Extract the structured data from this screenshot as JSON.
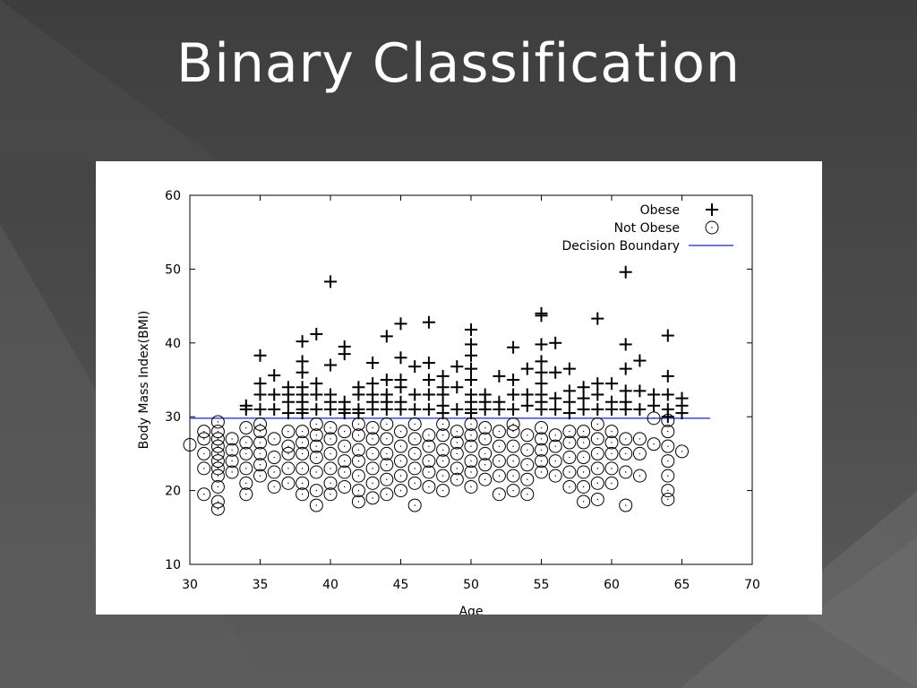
{
  "slide": {
    "title": "Binary Classification"
  },
  "chart_data": {
    "type": "scatter",
    "xlabel": "Age",
    "ylabel": "Body Mass Index(BMI)",
    "xlim": [
      30,
      70
    ],
    "ylim": [
      10,
      60
    ],
    "xticks": [
      "30",
      "35",
      "40",
      "45",
      "50",
      "55",
      "60",
      "65",
      "70"
    ],
    "yticks": [
      "10",
      "20",
      "30",
      "40",
      "50",
      "60"
    ],
    "legend_position": "top-right",
    "grid": false,
    "series": [
      {
        "name": "Obese",
        "marker": "plus",
        "color": "#000000",
        "points": [
          [
            34,
            31.5
          ],
          [
            34,
            31
          ],
          [
            35,
            38.3
          ],
          [
            35,
            34.5
          ],
          [
            35,
            33
          ],
          [
            35,
            31
          ],
          [
            36,
            35.6
          ],
          [
            36,
            33
          ],
          [
            36,
            31
          ],
          [
            37,
            34
          ],
          [
            37,
            33
          ],
          [
            37,
            32
          ],
          [
            37,
            30.5
          ],
          [
            38,
            40.2
          ],
          [
            38,
            37.5
          ],
          [
            38,
            36
          ],
          [
            38,
            34
          ],
          [
            38,
            33
          ],
          [
            38,
            32
          ],
          [
            38,
            31
          ],
          [
            38,
            30.5
          ],
          [
            39,
            41.2
          ],
          [
            39,
            34.5
          ],
          [
            39,
            33
          ],
          [
            39,
            31
          ],
          [
            40,
            48.3
          ],
          [
            40,
            37
          ],
          [
            40,
            33
          ],
          [
            40,
            32
          ],
          [
            40,
            31
          ],
          [
            41,
            39.5
          ],
          [
            41,
            38.5
          ],
          [
            41,
            32
          ],
          [
            41,
            31
          ],
          [
            41,
            30.5
          ],
          [
            42,
            34
          ],
          [
            42,
            33
          ],
          [
            42,
            31
          ],
          [
            42,
            30.5
          ],
          [
            43,
            37.3
          ],
          [
            43,
            34.5
          ],
          [
            43,
            33
          ],
          [
            43,
            32
          ],
          [
            43,
            31
          ],
          [
            44,
            40.9
          ],
          [
            44,
            35
          ],
          [
            44,
            33
          ],
          [
            44,
            32
          ],
          [
            44,
            31
          ],
          [
            45,
            42.6
          ],
          [
            45,
            38
          ],
          [
            45,
            35
          ],
          [
            45,
            34
          ],
          [
            45,
            32
          ],
          [
            45,
            31
          ],
          [
            46,
            36.8
          ],
          [
            46,
            33
          ],
          [
            46,
            31
          ],
          [
            47,
            42.8
          ],
          [
            47,
            37.3
          ],
          [
            47,
            35
          ],
          [
            47,
            33
          ],
          [
            47,
            31
          ],
          [
            48,
            35.5
          ],
          [
            48,
            34
          ],
          [
            48,
            33
          ],
          [
            48,
            31.5
          ],
          [
            48,
            30.5
          ],
          [
            49,
            36.8
          ],
          [
            49,
            34
          ],
          [
            49,
            31
          ],
          [
            50,
            41.8
          ],
          [
            50,
            39.8
          ],
          [
            50,
            38.3
          ],
          [
            50,
            36.5
          ],
          [
            50,
            35
          ],
          [
            50,
            33
          ],
          [
            50,
            32
          ],
          [
            50,
            31
          ],
          [
            50,
            30.5
          ],
          [
            51,
            33
          ],
          [
            51,
            32
          ],
          [
            51,
            31
          ],
          [
            52,
            35.5
          ],
          [
            52,
            32
          ],
          [
            52,
            31
          ],
          [
            53,
            39.4
          ],
          [
            53,
            35
          ],
          [
            53,
            33
          ],
          [
            53,
            31
          ],
          [
            54,
            36.5
          ],
          [
            54,
            33
          ],
          [
            54,
            31.5
          ],
          [
            55,
            44
          ],
          [
            55,
            43.7
          ],
          [
            55,
            39.8
          ],
          [
            55,
            37.5
          ],
          [
            55,
            36
          ],
          [
            55,
            34.5
          ],
          [
            55,
            33
          ],
          [
            55,
            32
          ],
          [
            55,
            31
          ],
          [
            56,
            40
          ],
          [
            56,
            36
          ],
          [
            56,
            32.5
          ],
          [
            56,
            31
          ],
          [
            57,
            36.5
          ],
          [
            57,
            33.5
          ],
          [
            57,
            32
          ],
          [
            57,
            30.5
          ],
          [
            58,
            34
          ],
          [
            58,
            32.5
          ],
          [
            58,
            31
          ],
          [
            59,
            43.3
          ],
          [
            59,
            34.5
          ],
          [
            59,
            33
          ],
          [
            59,
            31
          ],
          [
            60,
            34.5
          ],
          [
            60,
            32
          ],
          [
            60,
            31
          ],
          [
            61,
            49.6
          ],
          [
            61,
            39.8
          ],
          [
            61,
            36.5
          ],
          [
            61,
            33.5
          ],
          [
            61,
            32
          ],
          [
            61,
            31
          ],
          [
            62,
            37.6
          ],
          [
            62,
            33.5
          ],
          [
            62,
            31
          ],
          [
            63,
            33
          ],
          [
            63,
            31.5
          ],
          [
            64,
            41
          ],
          [
            64,
            35.5
          ],
          [
            64,
            33
          ],
          [
            64,
            31
          ],
          [
            64,
            30
          ],
          [
            65,
            32.5
          ],
          [
            65,
            31.5
          ],
          [
            65,
            30.5
          ]
        ]
      },
      {
        "name": "Not Obese",
        "marker": "circle",
        "color": "#000000",
        "points": [
          [
            30,
            26.2
          ],
          [
            31,
            19.5
          ],
          [
            31,
            23
          ],
          [
            31,
            25
          ],
          [
            31,
            27
          ],
          [
            31,
            28
          ],
          [
            32,
            17.5
          ],
          [
            32,
            18.5
          ],
          [
            32,
            20.5
          ],
          [
            32,
            22
          ],
          [
            32,
            23
          ],
          [
            32,
            24
          ],
          [
            32,
            25
          ],
          [
            32,
            26
          ],
          [
            32,
            27
          ],
          [
            32,
            28
          ],
          [
            32,
            29.3
          ],
          [
            33,
            22.5
          ],
          [
            33,
            24
          ],
          [
            33,
            25.5
          ],
          [
            33,
            27
          ],
          [
            34,
            19.5
          ],
          [
            34,
            21
          ],
          [
            34,
            23
          ],
          [
            34,
            25
          ],
          [
            34,
            26.5
          ],
          [
            34,
            28.5
          ],
          [
            35,
            22
          ],
          [
            35,
            23.5
          ],
          [
            35,
            25
          ],
          [
            35,
            26.5
          ],
          [
            35,
            28
          ],
          [
            35,
            29
          ],
          [
            36,
            20.5
          ],
          [
            36,
            22.5
          ],
          [
            36,
            24.5
          ],
          [
            36,
            27
          ],
          [
            37,
            21
          ],
          [
            37,
            23
          ],
          [
            37,
            25
          ],
          [
            37,
            26
          ],
          [
            37,
            28
          ],
          [
            38,
            19.5
          ],
          [
            38,
            21
          ],
          [
            38,
            23
          ],
          [
            38,
            25
          ],
          [
            38,
            26.5
          ],
          [
            38,
            28
          ],
          [
            39,
            18
          ],
          [
            39,
            20
          ],
          [
            39,
            22.5
          ],
          [
            39,
            24.5
          ],
          [
            39,
            26
          ],
          [
            39,
            27.5
          ],
          [
            39,
            29
          ],
          [
            40,
            19.5
          ],
          [
            40,
            21
          ],
          [
            40,
            23
          ],
          [
            40,
            25
          ],
          [
            40,
            27
          ],
          [
            40,
            28.5
          ],
          [
            41,
            20.5
          ],
          [
            41,
            22.5
          ],
          [
            41,
            24
          ],
          [
            41,
            26
          ],
          [
            41,
            28
          ],
          [
            42,
            18.5
          ],
          [
            42,
            20
          ],
          [
            42,
            22
          ],
          [
            42,
            24
          ],
          [
            42,
            25.5
          ],
          [
            42,
            27.5
          ],
          [
            42,
            29
          ],
          [
            43,
            19
          ],
          [
            43,
            21
          ],
          [
            43,
            23
          ],
          [
            43,
            25
          ],
          [
            43,
            27
          ],
          [
            43,
            28.5
          ],
          [
            44,
            19.5
          ],
          [
            44,
            21.5
          ],
          [
            44,
            23.5
          ],
          [
            44,
            25
          ],
          [
            44,
            27
          ],
          [
            44,
            29
          ],
          [
            45,
            20
          ],
          [
            45,
            22
          ],
          [
            45,
            24
          ],
          [
            45,
            26
          ],
          [
            45,
            28
          ],
          [
            46,
            18
          ],
          [
            46,
            21
          ],
          [
            46,
            23
          ],
          [
            46,
            25
          ],
          [
            46,
            27
          ],
          [
            46,
            29
          ],
          [
            47,
            20.5
          ],
          [
            47,
            22.5
          ],
          [
            47,
            24
          ],
          [
            47,
            26
          ],
          [
            47,
            27.5
          ],
          [
            48,
            20
          ],
          [
            48,
            22
          ],
          [
            48,
            24
          ],
          [
            48,
            25.5
          ],
          [
            48,
            27.5
          ],
          [
            48,
            29
          ],
          [
            49,
            21.5
          ],
          [
            49,
            23
          ],
          [
            49,
            25
          ],
          [
            49,
            26.5
          ],
          [
            49,
            28
          ],
          [
            50,
            20.5
          ],
          [
            50,
            22.5
          ],
          [
            50,
            24
          ],
          [
            50,
            26
          ],
          [
            50,
            27.5
          ],
          [
            50,
            29
          ],
          [
            51,
            21.5
          ],
          [
            51,
            23.5
          ],
          [
            51,
            25
          ],
          [
            51,
            27
          ],
          [
            51,
            28.5
          ],
          [
            52,
            19.5
          ],
          [
            52,
            22
          ],
          [
            52,
            24
          ],
          [
            52,
            26
          ],
          [
            52,
            28
          ],
          [
            53,
            20
          ],
          [
            53,
            22
          ],
          [
            53,
            24
          ],
          [
            53,
            26
          ],
          [
            53,
            28
          ],
          [
            53,
            29
          ],
          [
            54,
            19.5
          ],
          [
            54,
            21.5
          ],
          [
            54,
            23.5
          ],
          [
            54,
            25.5
          ],
          [
            54,
            27.5
          ],
          [
            55,
            22.5
          ],
          [
            55,
            24
          ],
          [
            55,
            25.5
          ],
          [
            55,
            27
          ],
          [
            55,
            28.5
          ],
          [
            56,
            22
          ],
          [
            56,
            24
          ],
          [
            56,
            26
          ],
          [
            56,
            27.5
          ],
          [
            57,
            20.5
          ],
          [
            57,
            22.5
          ],
          [
            57,
            24.5
          ],
          [
            57,
            26.5
          ],
          [
            57,
            28
          ],
          [
            58,
            18.5
          ],
          [
            58,
            20.5
          ],
          [
            58,
            22.5
          ],
          [
            58,
            24.5
          ],
          [
            58,
            26.5
          ],
          [
            58,
            28
          ],
          [
            59,
            18.8
          ],
          [
            59,
            21
          ],
          [
            59,
            23
          ],
          [
            59,
            25
          ],
          [
            59,
            27
          ],
          [
            59,
            29
          ],
          [
            60,
            21
          ],
          [
            60,
            23
          ],
          [
            60,
            25
          ],
          [
            60,
            26.5
          ],
          [
            60,
            28
          ],
          [
            61,
            18
          ],
          [
            61,
            22.5
          ],
          [
            61,
            25
          ],
          [
            61,
            27
          ],
          [
            62,
            22
          ],
          [
            62,
            25
          ],
          [
            62,
            27
          ],
          [
            63,
            26.3
          ],
          [
            63,
            29.8
          ],
          [
            64,
            18.8
          ],
          [
            64,
            20
          ],
          [
            64,
            22
          ],
          [
            64,
            24
          ],
          [
            64,
            26
          ],
          [
            64,
            28
          ],
          [
            64,
            29.5
          ],
          [
            65,
            25.3
          ]
        ]
      },
      {
        "name": "Decision Boundary",
        "marker": "line",
        "color": "#1f23c8",
        "points": [
          [
            30,
            29.8
          ],
          [
            67,
            29.8
          ]
        ]
      }
    ]
  }
}
